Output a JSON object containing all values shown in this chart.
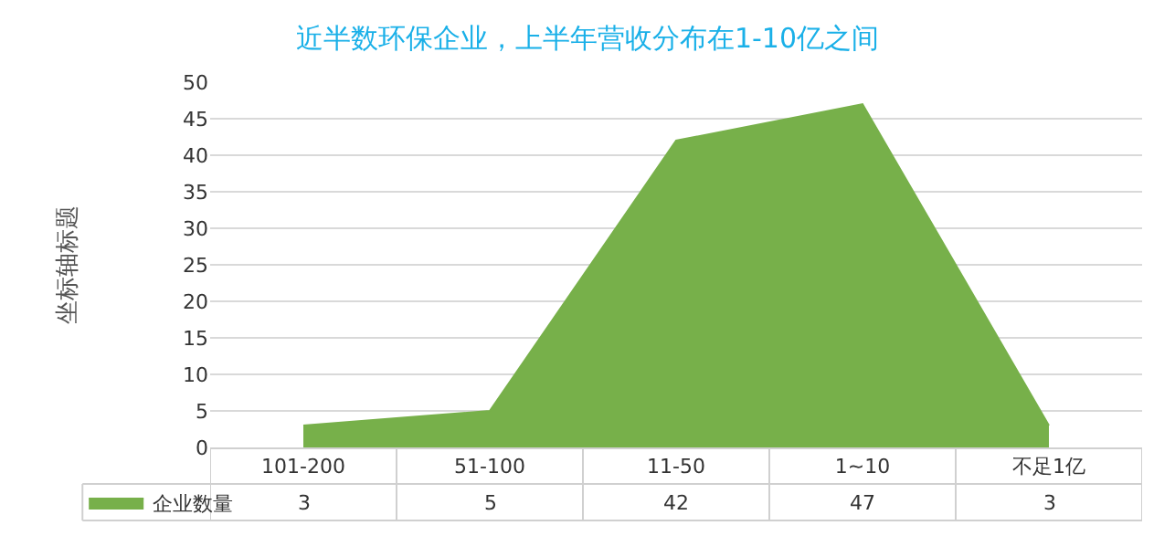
{
  "chart_data": {
    "type": "area",
    "title": "近半数环保企业，上半年营收分布在1-10亿之间",
    "ylabel": "坐标轴标题",
    "categories": [
      "101-200",
      "51-100",
      "11-50",
      "1~10",
      "不足1亿"
    ],
    "series": [
      {
        "name": "企业数量",
        "color": "#77b04a",
        "values": [
          3,
          5,
          42,
          47,
          3
        ]
      }
    ],
    "ylim": [
      0,
      50
    ],
    "yticks": [
      0,
      5,
      10,
      15,
      20,
      25,
      30,
      35,
      40,
      45,
      50
    ],
    "grid": "y",
    "legend": "bottom left",
    "data_labels": true
  }
}
